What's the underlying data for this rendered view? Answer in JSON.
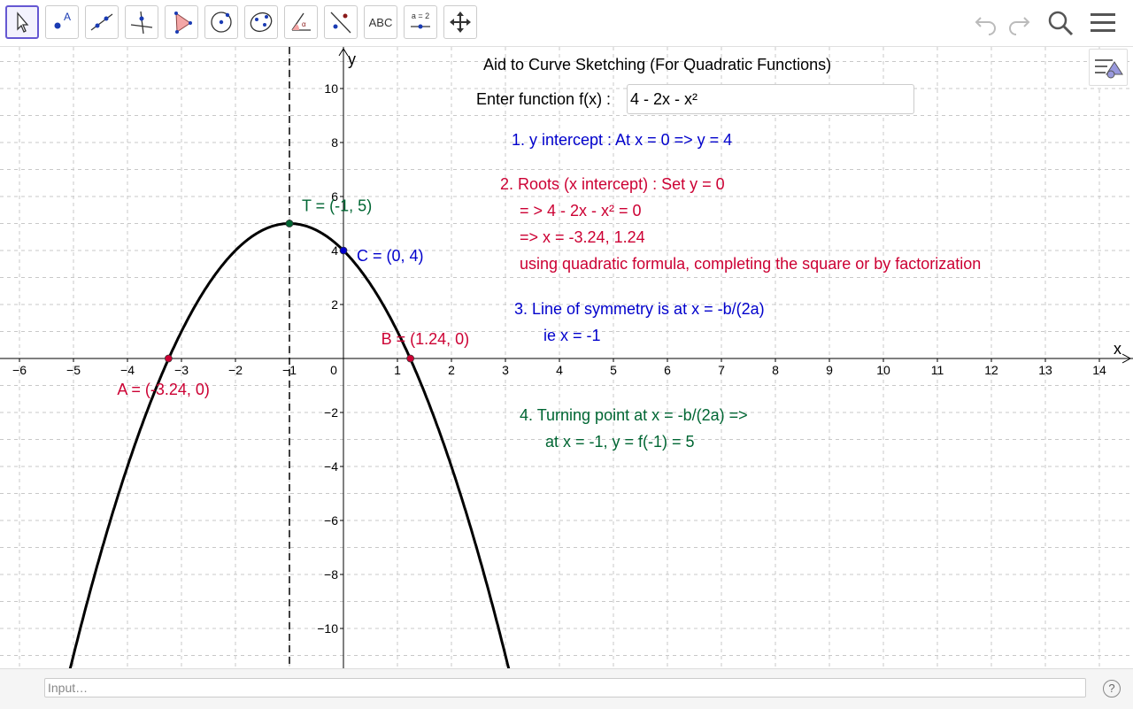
{
  "toolbar": {
    "tools": [
      {
        "name": "move-tool-button",
        "icon": "arrow-cursor-icon"
      },
      {
        "name": "point-tool-button",
        "icon": "point-icon",
        "label": "A"
      },
      {
        "name": "line-tool-button",
        "icon": "line-icon"
      },
      {
        "name": "perpendicular-tool-button",
        "icon": "perpendicular-icon"
      },
      {
        "name": "polygon-tool-button",
        "icon": "polygon-icon"
      },
      {
        "name": "circle-tool-button",
        "icon": "circle-center-icon"
      },
      {
        "name": "ellipse-tool-button",
        "icon": "ellipse-icon"
      },
      {
        "name": "angle-tool-button",
        "icon": "angle-icon"
      },
      {
        "name": "reflect-tool-button",
        "icon": "reflect-icon"
      },
      {
        "name": "text-tool-button",
        "icon": "text-icon",
        "label": "ABC"
      },
      {
        "name": "slider-tool-button",
        "icon": "slider-icon",
        "label": "a = 2"
      },
      {
        "name": "move-view-tool-button",
        "icon": "move-view-icon"
      }
    ]
  },
  "axes": {
    "x_label": "x",
    "y_label": "y",
    "x_ticks": [
      "−6",
      "−5",
      "−4",
      "−3",
      "−2",
      "−1",
      "0",
      "1",
      "2",
      "3",
      "4",
      "5",
      "6",
      "7",
      "8",
      "9",
      "10",
      "11",
      "12",
      "13",
      "14"
    ],
    "y_ticks_pos": [
      "2",
      "4",
      "6",
      "8",
      "10"
    ],
    "y_ticks_neg": [
      "−2",
      "−4",
      "−6",
      "−8",
      "−10"
    ]
  },
  "chart_data": {
    "type": "line",
    "function": "4 - 2x - x²",
    "xlim": [
      -6.3,
      14.5
    ],
    "ylim": [
      -11.5,
      11.4
    ],
    "grid": true,
    "symmetry_line_x": -1,
    "points": [
      {
        "name": "T",
        "label": "T = (-1, 5)",
        "x": -1,
        "y": 5,
        "color": "#006633"
      },
      {
        "name": "C",
        "label": "C = (0, 4)",
        "x": 0,
        "y": 4,
        "color": "#0000cc"
      },
      {
        "name": "B",
        "label": "B = (1.24, 0)",
        "x": 1.24,
        "y": 0,
        "color": "#cc0033"
      },
      {
        "name": "A",
        "label": "A = (-3.24, 0)",
        "x": -3.24,
        "y": 0,
        "color": "#cc0033"
      }
    ]
  },
  "panel": {
    "title": "Aid to Curve Sketching (For Quadratic Functions)",
    "input_label": "Enter function f(x) :",
    "input_value": "4 - 2x - x²",
    "step1": "1.  y intercept  : At x = 0 =>  y = 4",
    "step2_line1": "2. Roots (x intercept) : Set y = 0",
    "step2_line2": "= >  4 - 2x - x² = 0",
    "step2_line3": "=> x =  -3.24,  1.24",
    "step2_line4": "using quadratic formula, completing the square or by factorization",
    "step3_line1": "3.   Line of symmetry is at x = -b/(2a)",
    "step3_line2": "ie   x  =  -1",
    "step4_line1": "4. Turning point at x = -b/(2a) =>",
    "step4_line2": "at x =  -1,   y =  f(-1) = 5"
  },
  "colors": {
    "blue": "#0000cc",
    "crimson": "#cc0033",
    "green": "#006633",
    "accent": "#6557d2"
  },
  "input_bar": {
    "placeholder": "Input…"
  }
}
